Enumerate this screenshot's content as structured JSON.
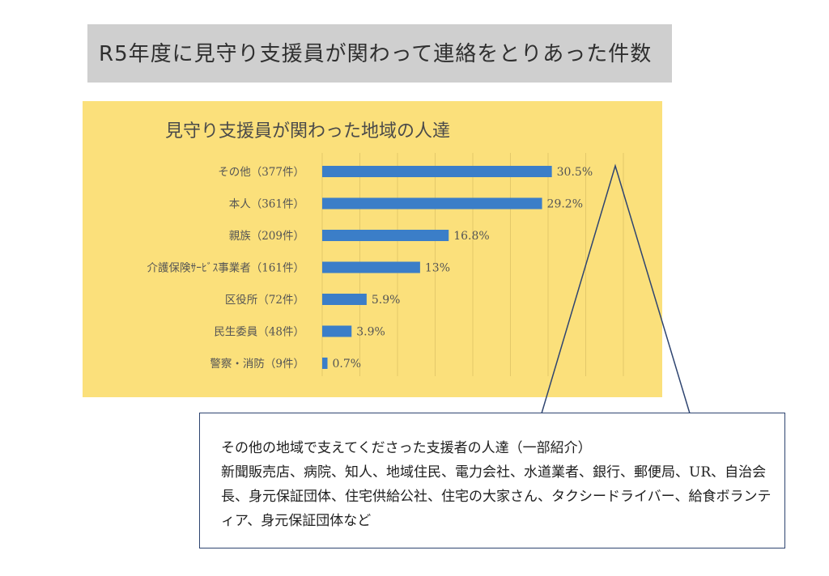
{
  "header": {
    "title": "R5年度に見守り支援員が関わって連絡をとりあった件数"
  },
  "chart_data": {
    "type": "bar",
    "orientation": "horizontal",
    "title": "見守り支援員が関わった地域の人達",
    "categories": [
      "その他（377件）",
      "本人（361件）",
      "親族（209件）",
      "介護保険ｻｰﾋﾞｽ事業者（161件）",
      "区役所（72件）",
      "民生委員（48件）",
      "警察・消防（9件）"
    ],
    "values": [
      30.5,
      29.2,
      16.8,
      13,
      5.9,
      3.9,
      0.7
    ],
    "data_labels": [
      "30.5%",
      "29.2%",
      "16.8%",
      "13%",
      "5.9%",
      "3.9%",
      "0.7%"
    ],
    "xlim": [
      0,
      40
    ],
    "grid": true,
    "bar_color": "#3b7ec8",
    "background_color": "#fbe07b"
  },
  "callout": {
    "heading": "その他の地域で支えてくださった支援者の人達（一部紹介）",
    "body": "新聞販売店、病院、知人、地域住民、電力会社、水道業者、銀行、郵便局、UR、自治会長、身元保証団体、住宅供給公社、住宅の大家さん、タクシードライバー、給食ボランティア、身元保証団体など"
  }
}
